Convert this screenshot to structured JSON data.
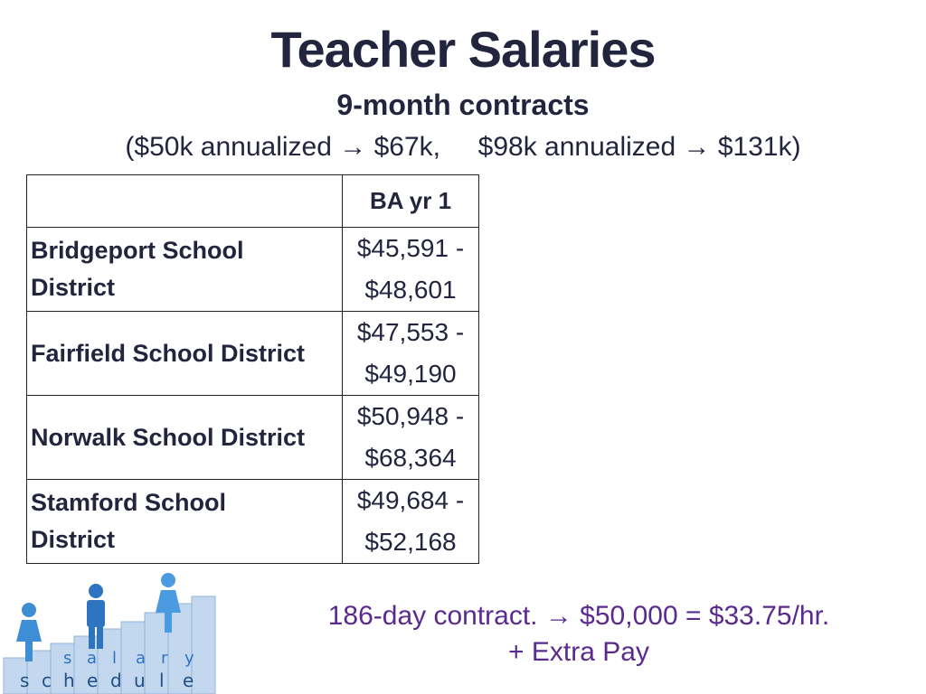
{
  "title": "Teacher Salaries",
  "subtitle": "9-month contracts",
  "note": "($50k annualized → $67k,     $98k annualized → $131k)",
  "table": {
    "header": [
      "",
      "BA yr 1"
    ],
    "rows": [
      {
        "district": "Bridgeport School District",
        "range_low": "$45,591 -",
        "range_high": "$48,601"
      },
      {
        "district": "Fairfield School District",
        "range_low": "$47,553 -",
        "range_high": "$49,190"
      },
      {
        "district": "Norwalk School District",
        "range_low": "$50,948 -",
        "range_high": "$68,364"
      },
      {
        "district": "Stamford School District",
        "range_low": "$49,684 -",
        "range_high": "$52,168"
      }
    ]
  },
  "footer": {
    "line1": "186-day contract. → $50,000 = $33.75/hr.",
    "line2": "+ Extra Pay"
  },
  "logo": {
    "top_letters": [
      "s",
      "a",
      "l",
      "a",
      "r",
      "y"
    ],
    "bottom_letters": [
      "s",
      "c",
      "h",
      "e",
      "d",
      "u",
      "l",
      "e"
    ]
  },
  "colors": {
    "text": "#22253d",
    "accent": "#5b2a8f",
    "figure": "#3e8ed6",
    "bars": "#a9c6e6"
  }
}
